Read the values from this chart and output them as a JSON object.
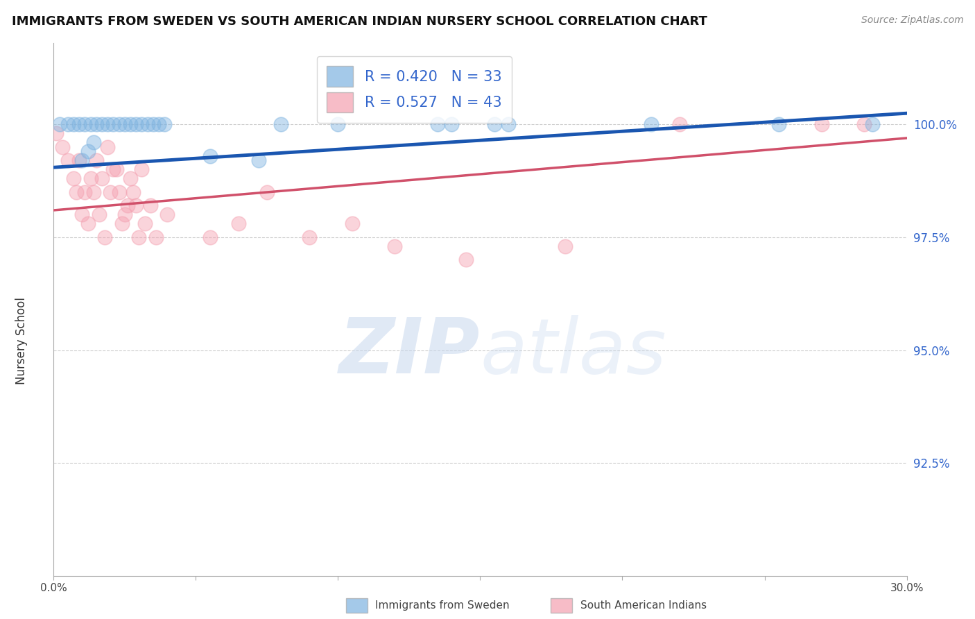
{
  "title": "IMMIGRANTS FROM SWEDEN VS SOUTH AMERICAN INDIAN NURSERY SCHOOL CORRELATION CHART",
  "source": "Source: ZipAtlas.com",
  "ylabel": "Nursery School",
  "xlim": [
    0.0,
    30.0
  ],
  "ylim": [
    90.0,
    101.8
  ],
  "yticks": [
    92.5,
    95.0,
    97.5,
    100.0
  ],
  "ytick_labels": [
    "92.5%",
    "95.0%",
    "97.5%",
    "100.0%"
  ],
  "xticks": [
    0.0,
    5.0,
    10.0,
    15.0,
    20.0,
    25.0,
    30.0
  ],
  "xtick_labels": [
    "0.0%",
    "",
    "",
    "",
    "",
    "",
    "30.0%"
  ],
  "legend_labels": [
    "Immigrants from Sweden",
    "South American Indians"
  ],
  "blue_R": 0.42,
  "blue_N": 33,
  "pink_R": 0.527,
  "pink_N": 43,
  "blue_color": "#7EB3E0",
  "pink_color": "#F4A0B0",
  "blue_line_color": "#1A56B0",
  "pink_line_color": "#D0506A",
  "watermark_zip": "ZIP",
  "watermark_atlas": "atlas",
  "background_color": "#FFFFFF",
  "blue_line_x0": 0.0,
  "blue_line_y0": 99.05,
  "blue_line_x1": 30.0,
  "blue_line_y1": 100.25,
  "pink_line_x0": 0.0,
  "pink_line_y0": 98.1,
  "pink_line_x1": 30.0,
  "pink_line_y1": 99.7,
  "blue_scatter_x": [
    0.2,
    0.5,
    0.7,
    0.9,
    1.1,
    1.3,
    1.5,
    1.7,
    1.9,
    2.1,
    2.3,
    2.5,
    2.7,
    2.9,
    3.1,
    3.3,
    3.5,
    3.7,
    3.9,
    1.0,
    1.2,
    1.4,
    5.5,
    7.2,
    8.0,
    10.0,
    13.5,
    14.0,
    15.5,
    16.0,
    21.0,
    25.5,
    28.8
  ],
  "blue_scatter_y": [
    100.0,
    100.0,
    100.0,
    100.0,
    100.0,
    100.0,
    100.0,
    100.0,
    100.0,
    100.0,
    100.0,
    100.0,
    100.0,
    100.0,
    100.0,
    100.0,
    100.0,
    100.0,
    100.0,
    99.2,
    99.4,
    99.6,
    99.3,
    99.2,
    100.0,
    100.0,
    100.0,
    100.0,
    100.0,
    100.0,
    100.0,
    100.0,
    100.0
  ],
  "pink_scatter_x": [
    0.1,
    0.3,
    0.5,
    0.7,
    0.9,
    1.1,
    1.3,
    1.5,
    1.7,
    1.9,
    2.1,
    2.3,
    2.5,
    2.7,
    2.9,
    3.1,
    0.8,
    1.0,
    1.2,
    1.4,
    1.6,
    1.8,
    2.0,
    2.2,
    2.4,
    2.6,
    2.8,
    3.0,
    3.2,
    3.4,
    3.6,
    4.0,
    5.5,
    6.5,
    7.5,
    9.0,
    10.5,
    12.0,
    14.5,
    18.0,
    22.0,
    27.0,
    28.5
  ],
  "pink_scatter_y": [
    99.8,
    99.5,
    99.2,
    98.8,
    99.2,
    98.5,
    98.8,
    99.2,
    98.8,
    99.5,
    99.0,
    98.5,
    98.0,
    98.8,
    98.2,
    99.0,
    98.5,
    98.0,
    97.8,
    98.5,
    98.0,
    97.5,
    98.5,
    99.0,
    97.8,
    98.2,
    98.5,
    97.5,
    97.8,
    98.2,
    97.5,
    98.0,
    97.5,
    97.8,
    98.5,
    97.5,
    97.8,
    97.3,
    97.0,
    97.3,
    100.0,
    100.0,
    100.0
  ]
}
